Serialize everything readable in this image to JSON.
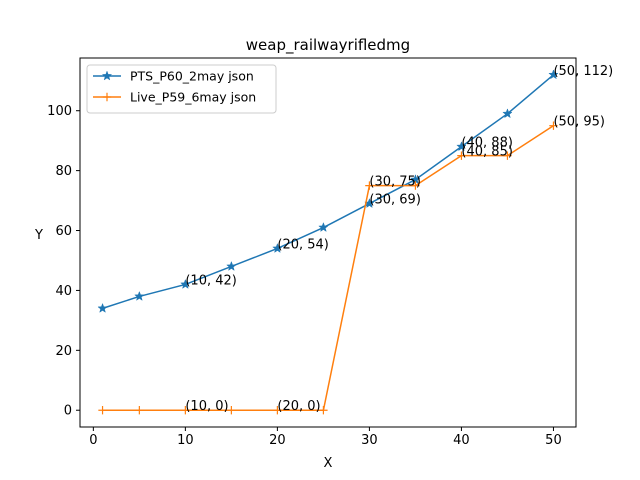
{
  "chart_data": {
    "type": "line",
    "title": "weap_railwayrifledmg",
    "xlabel": "X",
    "ylabel": "Y",
    "xlim": [
      -1.45,
      52.45
    ],
    "ylim": [
      -5.6,
      117.6
    ],
    "xticks": [
      0,
      10,
      20,
      30,
      40,
      50
    ],
    "yticks": [
      0,
      20,
      40,
      60,
      80,
      100
    ],
    "grid": false,
    "legend_position": "top-left",
    "series": [
      {
        "name": "PTS_P60_2may json",
        "color": "#1f77b4",
        "marker": "star",
        "x": [
          1,
          5,
          10,
          15,
          20,
          25,
          30,
          35,
          40,
          45,
          50
        ],
        "y": [
          34,
          38,
          42,
          48,
          54,
          61,
          69,
          77,
          88,
          99,
          112
        ]
      },
      {
        "name": "Live_P59_6may json",
        "color": "#ff7f0e",
        "marker": "plus",
        "x": [
          1,
          5,
          10,
          15,
          20,
          25,
          30,
          35,
          40,
          45,
          50
        ],
        "y": [
          0,
          0,
          0,
          0,
          0,
          0,
          75,
          75,
          85,
          85,
          95
        ]
      }
    ],
    "annotations": [
      {
        "text": "(10, 42)",
        "x": 10,
        "y": 42
      },
      {
        "text": "(20, 54)",
        "x": 20,
        "y": 54
      },
      {
        "text": "(30, 69)",
        "x": 30,
        "y": 69
      },
      {
        "text": "(40, 88)",
        "x": 40,
        "y": 88
      },
      {
        "text": "(50, 112)",
        "x": 50,
        "y": 112
      },
      {
        "text": "(10, 0)",
        "x": 10,
        "y": 0
      },
      {
        "text": "(20, 0)",
        "x": 20,
        "y": 0
      },
      {
        "text": "(30, 75)",
        "x": 30,
        "y": 75
      },
      {
        "text": "(40, 85)",
        "x": 40,
        "y": 85
      },
      {
        "text": "(50, 95)",
        "x": 50,
        "y": 95
      }
    ]
  }
}
